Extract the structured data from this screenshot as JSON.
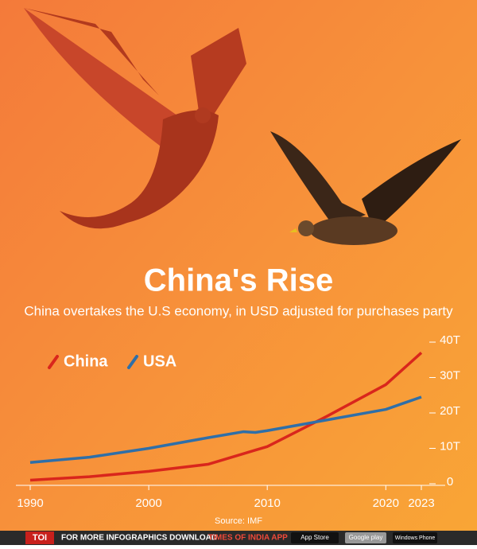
{
  "chart_data": {
    "type": "line",
    "title": "China's Rise",
    "subtitle": "China overtakes the U.S economy, in USD adjusted for purchases party",
    "source": "Source: IMF",
    "x": [
      1990,
      1995,
      2000,
      2005,
      2008,
      2009,
      2010,
      2015,
      2020,
      2023
    ],
    "series": [
      {
        "name": "China",
        "color": "#d9261c",
        "values": [
          1,
          2,
          3.5,
          5.5,
          8.5,
          9.5,
          10.5,
          19,
          28,
          37
        ]
      },
      {
        "name": "USA",
        "color": "#2f6fa8",
        "values": [
          6,
          7.5,
          10,
          13,
          14.7,
          14.5,
          15,
          18,
          21,
          24.5
        ]
      }
    ],
    "xlim": [
      1990,
      2023
    ],
    "xticks": [
      1990,
      2000,
      2010,
      2020,
      2023
    ],
    "ylim": [
      0,
      40
    ],
    "yticks": [
      0,
      {
        "value": 10,
        "label": "10T"
      },
      {
        "value": 20,
        "label": "20T"
      },
      {
        "value": 30,
        "label": "30T"
      },
      {
        "value": 40,
        "label": "40T"
      }
    ],
    "grid": false
  },
  "footer": {
    "brand": "TOI",
    "promo": "FOR MORE  INFOGRAPHICS DOWNLOAD",
    "app": "TIMES OF INDIA  APP",
    "stores": [
      "App Store",
      "Google play",
      "Windows Phone"
    ]
  }
}
